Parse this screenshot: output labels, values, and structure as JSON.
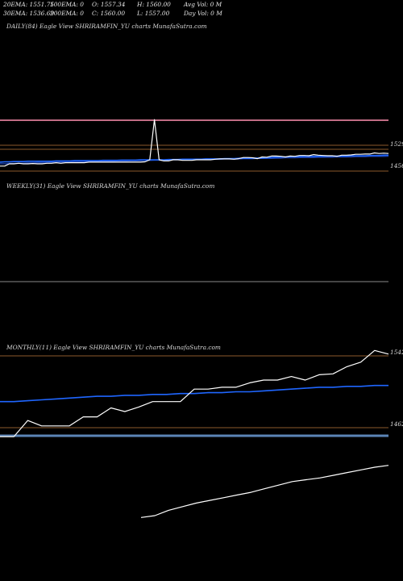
{
  "header": {
    "line1": [
      "20EMA: 1551.75",
      "100EMA: 0",
      "O: 1557.34",
      "H: 1560.00",
      "Avg Vol: 0  M"
    ],
    "line2": [
      "30EMA: 1536.69",
      "200EMA: 0",
      "C: 1560.00",
      "L: 1557.00",
      "Day Vol: 0  M"
    ]
  },
  "panels": {
    "daily": {
      "title": "DAILY(84) Eagle  View  SHRIRAMFIN_YU charts MunafaSutra.com",
      "label_upper": "1529",
      "label_lower": "1456"
    },
    "weekly": {
      "title": "WEEKLY(31) Eagle  View  SHRIRAMFIN_YU charts MunafaSutra.com"
    },
    "monthly": {
      "title": "MONTHLY(11) Eagle  View  SHRIRAMFIN_YU charts MunafaSutra.com",
      "label_upper": "1542",
      "label_lower": "1462"
    }
  },
  "colors": {
    "price": "#ffffff",
    "ema_short": "#1f66ff",
    "ema_long": "#1c3c9c",
    "pink_level": "#ff8fb0",
    "brown_level": "#8b5a2b",
    "gray_level": "#8a8a8a",
    "slate_level": "#5b84b6"
  },
  "chart_data": [
    {
      "type": "line",
      "panel": "daily",
      "price_levels": [
        1456,
        1529
      ],
      "series": [
        {
          "values": [
            1448,
            1448,
            1456,
            1456,
            1458,
            1456,
            1456,
            1457,
            1456,
            1456,
            1458,
            1458,
            1460,
            1458,
            1460,
            1460,
            1460,
            1460,
            1460,
            1462,
            1462,
            1462,
            1462,
            1462,
            1462,
            1462,
            1462,
            1462,
            1462,
            1462,
            1462,
            1463,
            1470,
            1610,
            1470,
            1466,
            1466,
            1470,
            1470,
            1468,
            1468,
            1468,
            1470,
            1470,
            1470,
            1470,
            1472,
            1473,
            1473,
            1473,
            1472,
            1474,
            1478,
            1478,
            1477,
            1474,
            1480,
            1479,
            1483,
            1483,
            1482,
            1480,
            1483,
            1482,
            1485,
            1485,
            1484,
            1488,
            1486,
            1485,
            1484,
            1484,
            1482,
            1486,
            1486,
            1487,
            1489,
            1489,
            1490,
            1490,
            1494,
            1492,
            1493,
            1492
          ]
        },
        {
          "values": [
            1462,
            1463,
            1463,
            1464,
            1464,
            1464,
            1465,
            1465,
            1465,
            1465,
            1465,
            1465,
            1466,
            1466,
            1466,
            1466,
            1467,
            1467,
            1467,
            1467,
            1467,
            1467,
            1468,
            1468,
            1468,
            1468,
            1469,
            1469,
            1469,
            1469,
            1470,
            1470,
            1470,
            1470,
            1470,
            1470,
            1471,
            1471,
            1471,
            1472,
            1472,
            1472,
            1472,
            1472,
            1473,
            1473,
            1473,
            1473,
            1474,
            1474,
            1474,
            1475,
            1475,
            1475,
            1476,
            1476,
            1476,
            1477,
            1478,
            1479,
            1480,
            1480,
            1481,
            1481,
            1481,
            1482,
            1482,
            1482,
            1482,
            1482,
            1483,
            1483,
            1483,
            1483,
            1483,
            1484,
            1484,
            1484,
            1484,
            1485,
            1485,
            1485,
            1486,
            1486
          ]
        },
        {
          "values": [
            1456,
            1456,
            1457,
            1457,
            1458,
            1458,
            1459,
            1459,
            1460,
            1460,
            1460,
            1461,
            1461,
            1462,
            1462,
            1462,
            1463,
            1463,
            1463,
            1464,
            1464,
            1464,
            1465,
            1465,
            1465,
            1466,
            1466,
            1466,
            1467,
            1467,
            1467,
            1468,
            1468,
            1469,
            1469,
            1469,
            1469,
            1470,
            1470,
            1470,
            1470,
            1471,
            1471,
            1471,
            1471,
            1472,
            1472,
            1472,
            1473,
            1473,
            1473,
            1473,
            1474,
            1474,
            1474,
            1475,
            1475,
            1475,
            1475,
            1476,
            1476,
            1477,
            1477,
            1477,
            1478,
            1478,
            1478,
            1478,
            1479,
            1479,
            1479,
            1479,
            1480,
            1480,
            1480,
            1480,
            1481,
            1481,
            1481,
            1482,
            1482,
            1482,
            1482,
            1483
          ]
        }
      ]
    },
    {
      "type": "line",
      "panel": "monthly",
      "price_levels": [
        1462,
        1542
      ],
      "series": [
        {
          "values": [
            1452,
            1452,
            1470,
            1464,
            1464,
            1464,
            1474,
            1474,
            1484,
            1480,
            1485,
            1491,
            1491,
            1491,
            1505,
            1505,
            1507,
            1507,
            1512,
            1515,
            1515,
            1519,
            1515,
            1521,
            1522,
            1530,
            1535,
            1548,
            1544
          ]
        },
        {
          "values": [
            1491,
            1491,
            1492,
            1493,
            1494,
            1495,
            1496,
            1497,
            1497,
            1498,
            1498,
            1499,
            1499,
            1500,
            1500,
            1501,
            1501,
            1502,
            1502,
            1503,
            1504,
            1505,
            1506,
            1507,
            1507,
            1508,
            1508,
            1509,
            1509
          ]
        },
        {
          "values": [
            1452,
            1452,
            1453,
            1453,
            1453,
            1453,
            1453,
            1453,
            1453,
            1453,
            1453,
            1453,
            1453,
            1453,
            1453,
            1453,
            1453,
            1453,
            1453,
            1453,
            1453,
            1453,
            1453,
            1453,
            1453,
            1453,
            1453,
            1453,
            1453
          ]
        },
        {
          "values": [
            1362,
            1364,
            1370,
            1374,
            1378,
            1381,
            1384,
            1387,
            1390,
            1394,
            1398,
            1402,
            1404,
            1406,
            1409,
            1412,
            1415,
            1418,
            1420
          ]
        }
      ]
    }
  ]
}
